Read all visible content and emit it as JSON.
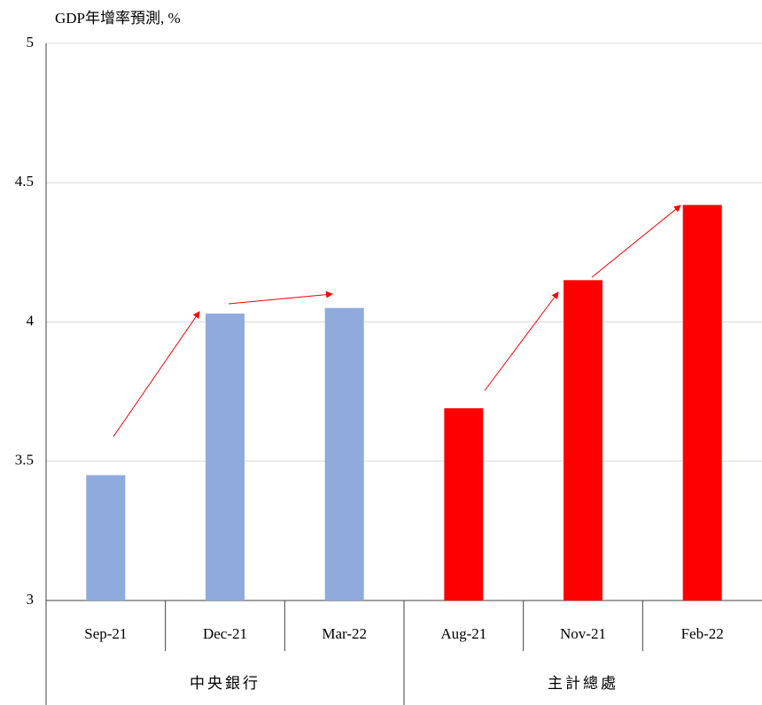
{
  "chart_data": {
    "type": "bar",
    "title": "GDP年增率預測, %",
    "series": [
      {
        "name": "中央銀行",
        "color": "#8faadc",
        "categories": [
          "Sep-21",
          "Dec-21",
          "Mar-22"
        ],
        "values": [
          3.45,
          4.03,
          4.05
        ]
      },
      {
        "name": "主計總處",
        "color": "#ff0000",
        "categories": [
          "Aug-21",
          "Nov-21",
          "Feb-22"
        ],
        "values": [
          3.69,
          4.15,
          4.42
        ]
      }
    ],
    "ylim": [
      3,
      5
    ],
    "yticks": [
      3,
      3.5,
      4,
      4.5,
      5
    ],
    "grid": true
  }
}
